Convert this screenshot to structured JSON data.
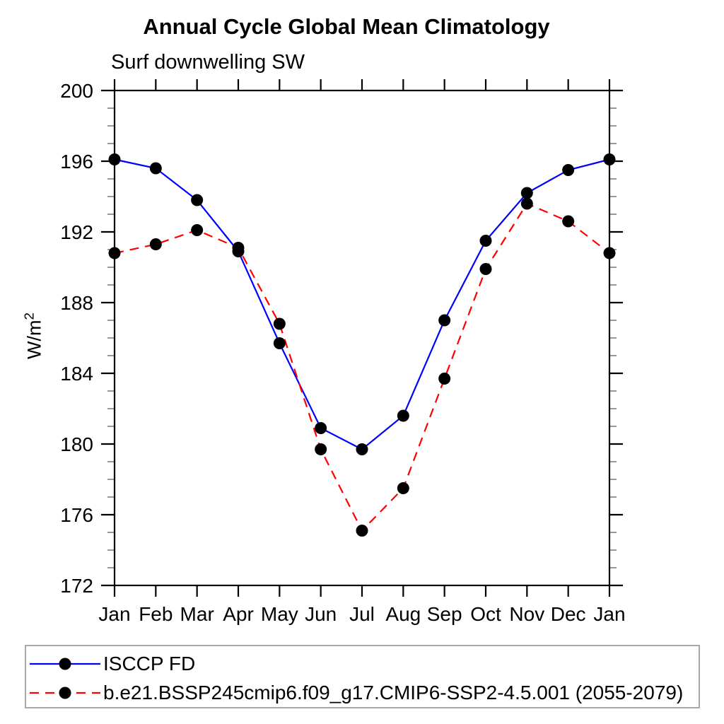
{
  "page": {
    "background": "#ffffff"
  },
  "chart_data": {
    "type": "line",
    "title": "Annual Cycle Global Mean Climatology",
    "subtitle": "Surf downwelling SW",
    "xlabel": "",
    "ylabel": "W/m²",
    "ylabel_base": "W/m",
    "ylabel_sup": "2",
    "categories": [
      "Jan",
      "Feb",
      "Mar",
      "Apr",
      "May",
      "Jun",
      "Jul",
      "Aug",
      "Sep",
      "Oct",
      "Nov",
      "Dec",
      "Jan"
    ],
    "series": [
      {
        "name": "ISCCP FD",
        "color": "#0000ff",
        "line_style": "solid",
        "marker": "circle",
        "marker_color": "#000000",
        "values": [
          196.1,
          195.6,
          193.8,
          190.9,
          185.7,
          180.9,
          179.7,
          181.6,
          187.0,
          191.5,
          194.2,
          195.5,
          196.1
        ]
      },
      {
        "name": "b.e21.BSSP245cmip6.f09_g17.CMIP6-SSP2-4.5.001 (2055-2079)",
        "color": "#ff0000",
        "line_style": "dashed",
        "marker": "circle",
        "marker_color": "#000000",
        "values": [
          190.8,
          191.3,
          192.1,
          191.1,
          186.8,
          179.7,
          175.1,
          177.5,
          183.7,
          189.9,
          193.6,
          192.6,
          190.8
        ]
      }
    ],
    "ylim": [
      172,
      200
    ],
    "yticks": [
      172,
      176,
      180,
      184,
      188,
      192,
      196,
      200
    ],
    "y_minor_step": 1,
    "grid": false,
    "legend_position": "bottom-left-box",
    "axis_color": "#000000",
    "minor_tick_color": "#999999"
  }
}
